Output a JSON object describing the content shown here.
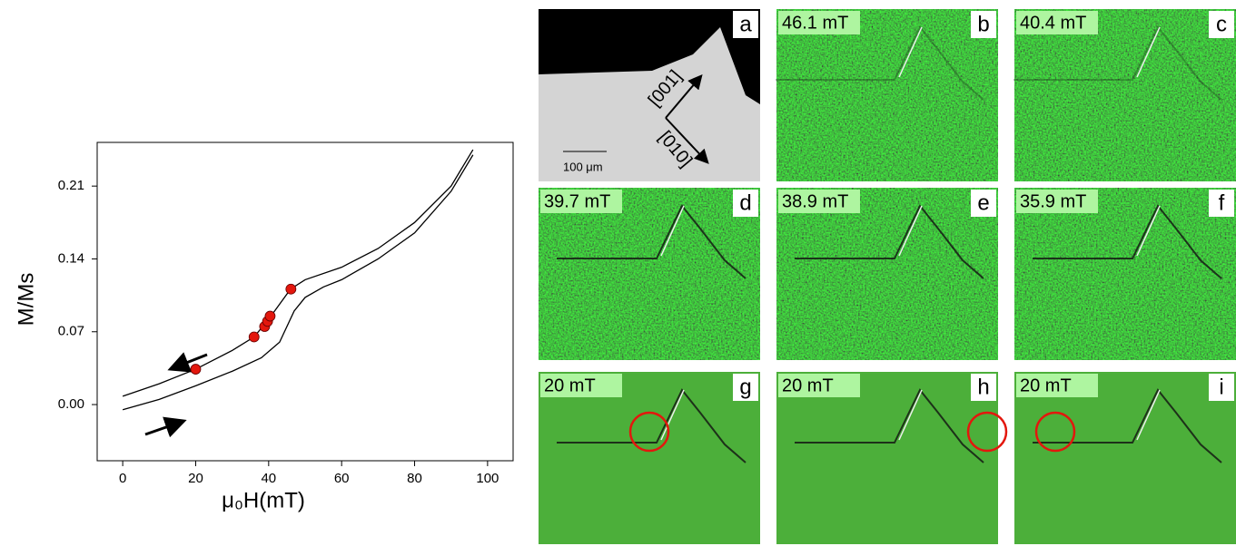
{
  "chart_data": {
    "type": "line",
    "xlabel": "μ₀H(mT)",
    "ylabel": "M/Ms",
    "xlim": [
      -7,
      107
    ],
    "ylim": [
      -0.054,
      0.252
    ],
    "xticks": [
      0,
      20,
      40,
      60,
      80,
      100
    ],
    "yticks": [
      {
        "value": 0,
        "label": "0.00"
      },
      {
        "value": 0.07,
        "label": "0.07"
      },
      {
        "value": 0.14,
        "label": "0.14"
      },
      {
        "value": 0.21,
        "label": "0.21"
      }
    ],
    "series": [
      {
        "color": "#000000",
        "x": [
          0,
          10,
          20,
          30,
          38,
          43,
          47,
          50,
          55,
          60,
          70,
          80,
          90,
          96
        ],
        "values": [
          -0.005,
          0.005,
          0.018,
          0.032,
          0.045,
          0.06,
          0.09,
          0.103,
          0.113,
          0.12,
          0.14,
          0.165,
          0.205,
          0.24
        ]
      },
      {
        "color": "#000000",
        "x": [
          0,
          10,
          20,
          30,
          36,
          40,
          46,
          50,
          60,
          70,
          80,
          90,
          96
        ],
        "values": [
          0.008,
          0.02,
          0.034,
          0.052,
          0.065,
          0.082,
          0.111,
          0.12,
          0.132,
          0.15,
          0.175,
          0.21,
          0.245
        ]
      },
      {
        "color": "#e3170d",
        "markers": true,
        "x": [
          20,
          36,
          38.9,
          39.7,
          40.4,
          46.1
        ],
        "values": [
          0.034,
          0.065,
          0.075,
          0.08,
          0.085,
          0.111
        ]
      }
    ]
  },
  "panels": [
    {
      "letter": "a",
      "labels": [
        "[001]",
        "[010]",
        "100 μm"
      ]
    },
    {
      "letter": "b",
      "field": "46.1 mT"
    },
    {
      "letter": "c",
      "field": "40.4 mT"
    },
    {
      "letter": "d",
      "field": "39.7 mT"
    },
    {
      "letter": "e",
      "field": "38.9 mT"
    },
    {
      "letter": "f",
      "field": "35.9 mT"
    },
    {
      "letter": "g",
      "field": "20 mT"
    },
    {
      "letter": "h",
      "field": "20 mT"
    },
    {
      "letter": "i",
      "field": "20 mT"
    }
  ]
}
